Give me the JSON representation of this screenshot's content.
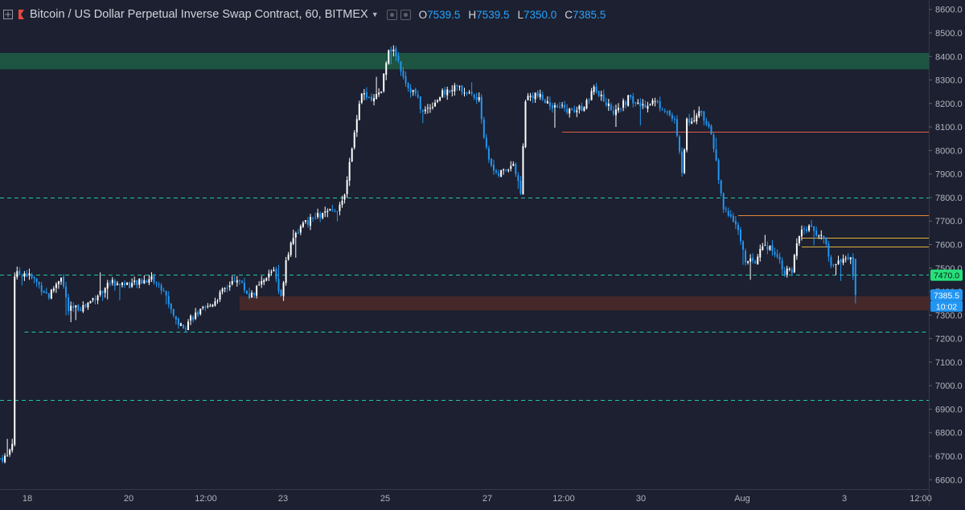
{
  "header": {
    "title": "Bitcoin / US Dollar Perpetual Inverse Swap Contract, 60, BITMEX",
    "ohlc": [
      {
        "key": "O",
        "value": "7539.5"
      },
      {
        "key": "H",
        "value": "7539.5"
      },
      {
        "key": "L",
        "value": "7350.0"
      },
      {
        "key": "C",
        "value": "7385.5"
      }
    ]
  },
  "colors": {
    "background": "#1c2030",
    "candle_up": "#ffffff",
    "candle_down": "#2196f3",
    "level_line": "#26c6a6",
    "resistance_zone": "#1e5a45",
    "support_zone": "#4a2a2a",
    "line_red": "#e45b4b",
    "line_orange": "#e8883a",
    "line_gold": "#e0b240",
    "tag_green": "#27e07a",
    "tag_blue": "#2196f3"
  },
  "chart_data": {
    "type": "candlestick",
    "title": "Bitcoin / US Dollar Perpetual Inverse Swap Contract, 60, BITMEX",
    "timeframe": "60",
    "x_tick_labels": [
      "18",
      "20",
      "12:00",
      "23",
      "25",
      "27",
      "12:00",
      "30",
      "Aug",
      "3",
      "12:00"
    ],
    "y_ticks": [
      6600,
      6700,
      6800,
      6900,
      7000,
      7100,
      7200,
      7300,
      7400,
      7500,
      7600,
      7700,
      7800,
      7900,
      8000,
      8100,
      8200,
      8300,
      8400,
      8500,
      8600
    ],
    "y_tick_labels": [
      "6600.0",
      "6700.0",
      "6800.0",
      "6900.0",
      "7000.0",
      "7100.0",
      "7200.0",
      "7300.0",
      "7400.0",
      "7500.0",
      "7600.0",
      "7700.0",
      "7800.0",
      "7900.0",
      "8000.0",
      "8100.0",
      "8200.0",
      "8300.0",
      "8400.0",
      "8500.0",
      "8600.0"
    ],
    "ylim": [
      6560,
      8640
    ],
    "xlim": [
      0,
      380
    ],
    "grid": false,
    "last_ohlc": {
      "open": 7539.5,
      "high": 7539.5,
      "low": 7350.0,
      "close": 7385.5
    },
    "price_tags": [
      {
        "label": "7470.0",
        "value": 7470,
        "kind": "level"
      },
      {
        "label": "7385.5",
        "value": 7385.5,
        "kind": "last"
      },
      {
        "label": "10:02",
        "value": 7385.5,
        "kind": "countdown"
      }
    ],
    "anchors": [
      [
        0,
        6690
      ],
      [
        3,
        6700
      ],
      [
        5,
        6760
      ],
      [
        6,
        7470
      ],
      [
        10,
        7480
      ],
      [
        14,
        7450
      ],
      [
        20,
        7380
      ],
      [
        25,
        7470
      ],
      [
        28,
        7320
      ],
      [
        35,
        7340
      ],
      [
        45,
        7440
      ],
      [
        55,
        7430
      ],
      [
        62,
        7460
      ],
      [
        67,
        7400
      ],
      [
        72,
        7280
      ],
      [
        75,
        7240
      ],
      [
        78,
        7290
      ],
      [
        85,
        7330
      ],
      [
        92,
        7410
      ],
      [
        97,
        7460
      ],
      [
        102,
        7380
      ],
      [
        108,
        7440
      ],
      [
        112,
        7500
      ],
      [
        115,
        7370
      ],
      [
        117,
        7540
      ],
      [
        120,
        7640
      ],
      [
        125,
        7690
      ],
      [
        130,
        7720
      ],
      [
        136,
        7740
      ],
      [
        140,
        7770
      ],
      [
        144,
        8000
      ],
      [
        146,
        8150
      ],
      [
        148,
        8250
      ],
      [
        152,
        8200
      ],
      [
        156,
        8260
      ],
      [
        159,
        8440
      ],
      [
        162,
        8410
      ],
      [
        164,
        8350
      ],
      [
        167,
        8270
      ],
      [
        170,
        8240
      ],
      [
        173,
        8160
      ],
      [
        177,
        8200
      ],
      [
        181,
        8240
      ],
      [
        186,
        8270
      ],
      [
        191,
        8250
      ],
      [
        196,
        8210
      ],
      [
        199,
        8000
      ],
      [
        203,
        7890
      ],
      [
        207,
        7920
      ],
      [
        210,
        7950
      ],
      [
        213,
        7810
      ],
      [
        215,
        8220
      ],
      [
        219,
        8240
      ],
      [
        224,
        8200
      ],
      [
        230,
        8180
      ],
      [
        235,
        8160
      ],
      [
        240,
        8200
      ],
      [
        243,
        8260
      ],
      [
        247,
        8210
      ],
      [
        252,
        8160
      ],
      [
        257,
        8220
      ],
      [
        262,
        8190
      ],
      [
        267,
        8210
      ],
      [
        272,
        8180
      ],
      [
        276,
        8120
      ],
      [
        279,
        7920
      ],
      [
        281,
        8120
      ],
      [
        286,
        8160
      ],
      [
        290,
        8110
      ],
      [
        293,
        7950
      ],
      [
        296,
        7740
      ],
      [
        299,
        7730
      ],
      [
        302,
        7660
      ],
      [
        305,
        7520
      ],
      [
        309,
        7530
      ],
      [
        313,
        7600
      ],
      [
        317,
        7570
      ],
      [
        321,
        7490
      ],
      [
        324,
        7480
      ],
      [
        326,
        7600
      ],
      [
        329,
        7670
      ],
      [
        333,
        7660
      ],
      [
        337,
        7630
      ],
      [
        340,
        7510
      ],
      [
        344,
        7540
      ],
      [
        348,
        7530
      ],
      [
        350,
        7385.5
      ]
    ],
    "zones": [
      {
        "role": "resistance",
        "from_x": 0,
        "to_x": 380,
        "low": 8345,
        "high": 8415
      },
      {
        "role": "support",
        "from_x": 98,
        "to_x": 380,
        "low": 7320,
        "high": 7380
      }
    ],
    "horizontal_levels": [
      {
        "style": "dashed",
        "value": 7800,
        "from_x": 0
      },
      {
        "style": "dashed",
        "value": 7472,
        "from_x": 0
      },
      {
        "style": "dashed",
        "value": 7228,
        "from_x": 10
      },
      {
        "style": "dashed",
        "value": 6938,
        "from_x": 0
      },
      {
        "style": "solid-red",
        "value": 8080,
        "from_x": 230
      },
      {
        "style": "solid-orange",
        "value": 7725,
        "from_x": 302
      },
      {
        "style": "solid-gold",
        "value": 7630,
        "from_x": 328
      },
      {
        "style": "solid-gold",
        "value": 7590,
        "from_x": 328
      }
    ]
  }
}
